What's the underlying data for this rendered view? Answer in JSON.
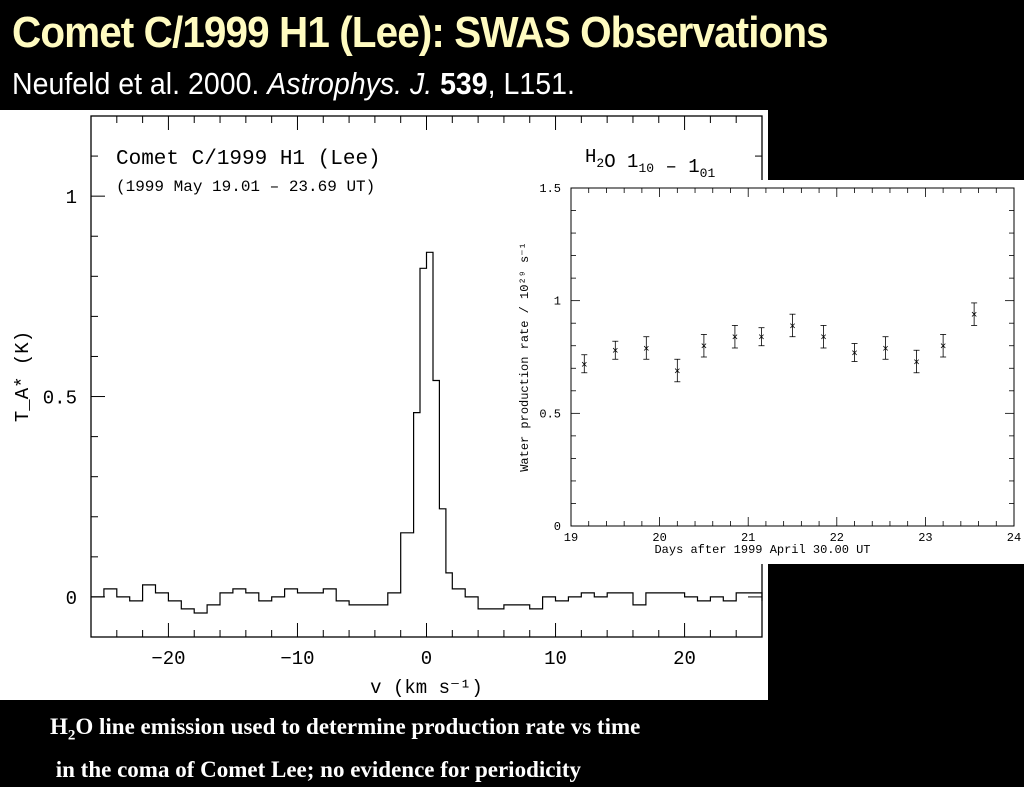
{
  "slide": {
    "title": "Comet C/1999 H1 (Lee): SWAS Observations",
    "citation": {
      "authors": "Neufeld et al. 2000.",
      "journal": "Astrophys. J.",
      "volume": "539",
      "page": ", L151."
    },
    "caption": {
      "line1_pre": "H",
      "line1_sub": "2",
      "line1_post": "O line emission used to determine production rate vs time",
      "line2": " in the coma of Comet Lee; no evidence for periodicity"
    }
  },
  "chart_data": [
    {
      "type": "line",
      "title": "Comet C/1999 H1 (Lee)",
      "subtitle": "(1999 May 19.01 – 23.69 UT)",
      "annotation": {
        "base": "H",
        "sub": "2",
        "rest": "O  1",
        "sub2": "10",
        "mid": " – 1",
        "sub3": "01"
      },
      "xlabel": "v (km s⁻¹)",
      "ylabel": "T_A* (K)",
      "xlim": [
        -26,
        26
      ],
      "ylim": [
        -0.1,
        1.2
      ],
      "xticks": [
        -20,
        -10,
        0,
        10,
        20
      ],
      "xtick_labels": [
        "−20",
        "−10",
        "0",
        "10",
        "20"
      ],
      "yticks": [
        0,
        0.5,
        1
      ],
      "ytick_labels": [
        "0",
        "0.5",
        "1"
      ],
      "grid": false,
      "x": [
        -26,
        -25,
        -24,
        -23,
        -22,
        -21,
        -20,
        -19,
        -18,
        -17,
        -16,
        -15,
        -14,
        -13,
        -12,
        -11,
        -10,
        -9,
        -8,
        -7,
        -6,
        -5,
        -4,
        -3,
        -2,
        -1,
        -0.5,
        0,
        0.5,
        1,
        1.5,
        2,
        3,
        4,
        5,
        6,
        7,
        8,
        9,
        10,
        11,
        12,
        13,
        14,
        15,
        16,
        17,
        18,
        19,
        20,
        21,
        22,
        23,
        24,
        25,
        26
      ],
      "y": [
        0,
        0.02,
        0,
        -0.01,
        0.03,
        0.01,
        -0.01,
        -0.03,
        -0.04,
        -0.02,
        0.01,
        0.02,
        0.01,
        -0.01,
        0,
        0.02,
        0.01,
        0.01,
        0.02,
        -0.01,
        -0.02,
        -0.02,
        -0.02,
        0.01,
        0.16,
        0.46,
        0.82,
        0.86,
        0.54,
        0.22,
        0.06,
        0.02,
        0,
        -0.03,
        -0.03,
        -0.02,
        -0.02,
        -0.03,
        0,
        -0.01,
        0,
        0.01,
        0,
        0.01,
        0.01,
        -0.02,
        0.01,
        0.01,
        0.01,
        0,
        -0.01,
        0,
        -0.01,
        0.01,
        0.01,
        -0.01
      ]
    },
    {
      "type": "scatter",
      "xlabel": "Days after 1999 April 30.00 UT",
      "ylabel": "Water production rate / 10²⁹ s⁻¹",
      "xlim": [
        19,
        24
      ],
      "ylim": [
        0,
        1.5
      ],
      "xticks": [
        19,
        20,
        21,
        22,
        23,
        24
      ],
      "xtick_labels": [
        "19",
        "20",
        "21",
        "22",
        "23",
        "24"
      ],
      "yticks": [
        0,
        0.5,
        1,
        1.5
      ],
      "ytick_labels": [
        "0",
        "0.5",
        "1",
        "1.5"
      ],
      "grid": false,
      "x": [
        19.15,
        19.5,
        19.85,
        20.2,
        20.5,
        20.85,
        21.15,
        21.5,
        21.85,
        22.2,
        22.55,
        22.9,
        23.2,
        23.55
      ],
      "y": [
        0.72,
        0.78,
        0.79,
        0.69,
        0.8,
        0.84,
        0.84,
        0.89,
        0.84,
        0.77,
        0.79,
        0.73,
        0.8,
        0.94
      ],
      "yerr": [
        0.04,
        0.04,
        0.05,
        0.05,
        0.05,
        0.05,
        0.04,
        0.05,
        0.05,
        0.04,
        0.05,
        0.05,
        0.05,
        0.05
      ]
    }
  ]
}
